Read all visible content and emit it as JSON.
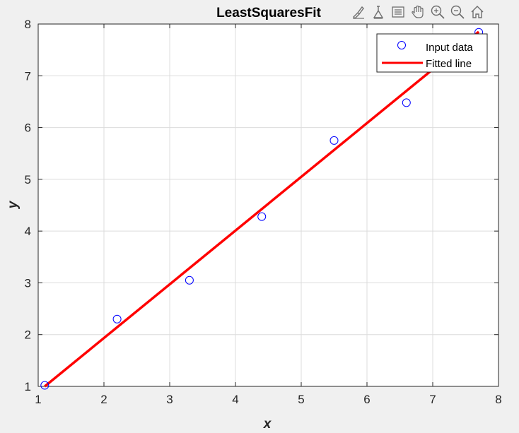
{
  "toolbar": {
    "icons": [
      "brush-icon",
      "data-tips-icon",
      "legend-toggle-icon",
      "pan-hand-icon",
      "zoom-in-icon",
      "zoom-out-icon",
      "home-icon"
    ]
  },
  "colors": {
    "background": "#f0f0f0",
    "axes_background": "#ffffff",
    "grid": "#dcdcdc",
    "markers": "#0000ff",
    "fit_line": "#ff0000"
  },
  "chart_data": {
    "type": "scatter",
    "title": "LeastSquaresFit",
    "xlabel": "x",
    "ylabel": "y",
    "xlim": [
      1,
      8
    ],
    "ylim": [
      1,
      8
    ],
    "xticks": [
      "1",
      "2",
      "3",
      "4",
      "5",
      "6",
      "7",
      "8"
    ],
    "yticks": [
      "1",
      "2",
      "3",
      "4",
      "5",
      "6",
      "7",
      "8"
    ],
    "grid": true,
    "legend_position": "top-right",
    "series": [
      {
        "name": "Input data",
        "kind": "markers",
        "marker": "circle",
        "x": [
          1.1,
          2.2,
          3.3,
          4.4,
          5.5,
          6.6,
          7.7
        ],
        "y": [
          1.02,
          2.3,
          3.05,
          4.28,
          5.75,
          6.48,
          7.84
        ]
      },
      {
        "name": "Fitted line",
        "kind": "line",
        "x": [
          1.1,
          7.7
        ],
        "y": [
          1.0,
          7.85
        ]
      }
    ]
  }
}
